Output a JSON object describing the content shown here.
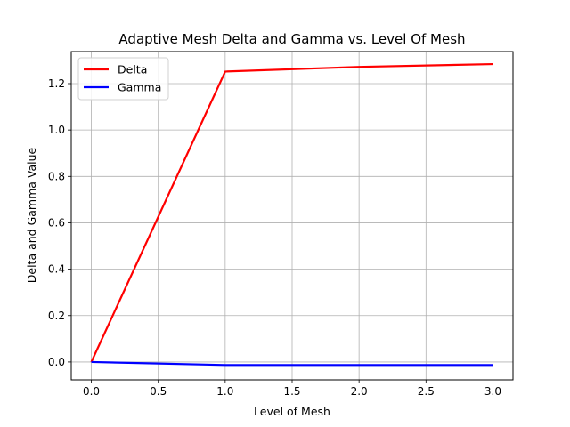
{
  "chart_data": {
    "type": "line",
    "title": "Adaptive Mesh Delta and Gamma vs. Level Of Mesh",
    "xlabel": "Level of Mesh",
    "ylabel": "Delta and Gamma Value",
    "x": [
      0,
      1,
      2,
      3
    ],
    "series": [
      {
        "name": "Delta",
        "color": "#ff0000",
        "values": [
          0.0,
          1.252,
          1.272,
          1.284
        ]
      },
      {
        "name": "Gamma",
        "color": "#0000ff",
        "values": [
          0.0,
          -0.013,
          -0.013,
          -0.013
        ]
      }
    ],
    "xlim": [
      -0.15,
      3.15
    ],
    "ylim": [
      -0.077,
      1.338
    ],
    "xticks": [
      0,
      0.5,
      1,
      1.5,
      2,
      2.5,
      3
    ],
    "xtick_labels": [
      "0.0",
      "0.5",
      "1.0",
      "1.5",
      "2.0",
      "2.5",
      "3.0"
    ],
    "yticks": [
      0,
      0.2,
      0.4,
      0.6,
      0.8,
      1.0,
      1.2
    ],
    "ytick_labels": [
      "0.0",
      "0.2",
      "0.4",
      "0.6",
      "0.8",
      "1.0",
      "1.2"
    ],
    "grid": true,
    "legend_position": "upper-left",
    "grid_color": "#b0b0b0"
  }
}
